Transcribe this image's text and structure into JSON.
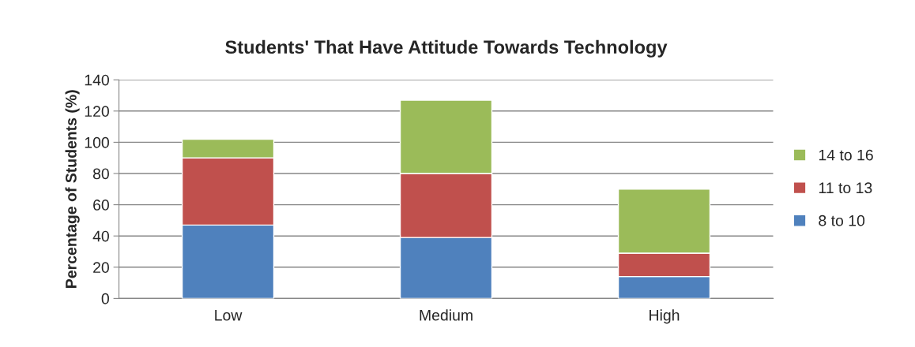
{
  "chart_data": {
    "type": "bar",
    "title": "Students' That Have Attitude Towards Technology",
    "ylabel": "Percentage of Students (%)",
    "categories": [
      "Low",
      "Medium",
      "High"
    ],
    "series": [
      {
        "name": "8 to 10",
        "color": "#4f81bd",
        "values": [
          47,
          39,
          14
        ]
      },
      {
        "name": "11 to 13",
        "color": "#c0504d",
        "values": [
          43,
          41,
          15
        ]
      },
      {
        "name": "14 to 16",
        "color": "#9bbb59",
        "values": [
          12,
          47,
          41
        ]
      }
    ],
    "stacked": true,
    "ylim": [
      0,
      140
    ],
    "yticks": [
      0,
      20,
      40,
      60,
      80,
      100,
      120,
      140
    ],
    "grid": "y",
    "legend": "right"
  }
}
